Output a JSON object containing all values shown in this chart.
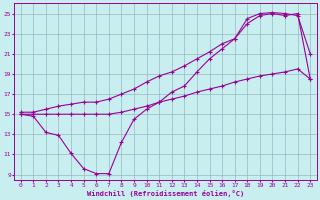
{
  "xlabel": "Windchill (Refroidissement éolien,°C)",
  "xlim": [
    -0.5,
    23.5
  ],
  "ylim": [
    8.5,
    26
  ],
  "xticks": [
    0,
    1,
    2,
    3,
    4,
    5,
    6,
    7,
    8,
    9,
    10,
    11,
    12,
    13,
    14,
    15,
    16,
    17,
    18,
    19,
    20,
    21,
    22,
    23
  ],
  "yticks": [
    9,
    11,
    13,
    15,
    17,
    19,
    21,
    23,
    25
  ],
  "bg_color": "#c8eef0",
  "line_color": "#990099",
  "grid_color": "#9ab8c0",
  "line1_x": [
    0,
    1,
    2,
    3,
    4,
    5,
    6,
    7,
    8,
    9,
    10,
    11,
    12,
    13,
    14,
    15,
    16,
    17,
    18,
    19,
    20,
    21,
    22,
    23
  ],
  "line1_y": [
    15.0,
    14.8,
    13.2,
    12.9,
    11.1,
    9.6,
    9.1,
    9.1,
    12.2,
    14.5,
    15.5,
    16.2,
    17.2,
    17.8,
    19.2,
    20.5,
    21.5,
    22.5,
    24.5,
    25.0,
    25.1,
    25.0,
    24.8,
    21.0
  ],
  "line2_x": [
    0,
    1,
    2,
    3,
    4,
    5,
    6,
    7,
    8,
    9,
    10,
    11,
    12,
    13,
    14,
    15,
    16,
    17,
    18,
    19,
    20,
    21,
    22,
    23
  ],
  "line2_y": [
    15.2,
    15.2,
    15.5,
    15.8,
    16.0,
    16.2,
    16.2,
    16.5,
    17.0,
    17.5,
    18.2,
    18.8,
    19.2,
    19.8,
    20.5,
    21.2,
    22.0,
    22.5,
    24.0,
    24.8,
    25.0,
    24.8,
    25.0,
    18.5
  ],
  "line3_x": [
    0,
    1,
    2,
    3,
    4,
    5,
    6,
    7,
    8,
    9,
    10,
    11,
    12,
    13,
    14,
    15,
    16,
    17,
    18,
    19,
    20,
    21,
    22,
    23
  ],
  "line3_y": [
    15.0,
    15.0,
    15.0,
    15.0,
    15.0,
    15.0,
    15.0,
    15.0,
    15.2,
    15.5,
    15.8,
    16.2,
    16.5,
    16.8,
    17.2,
    17.5,
    17.8,
    18.2,
    18.5,
    18.8,
    19.0,
    19.2,
    19.5,
    18.5
  ]
}
